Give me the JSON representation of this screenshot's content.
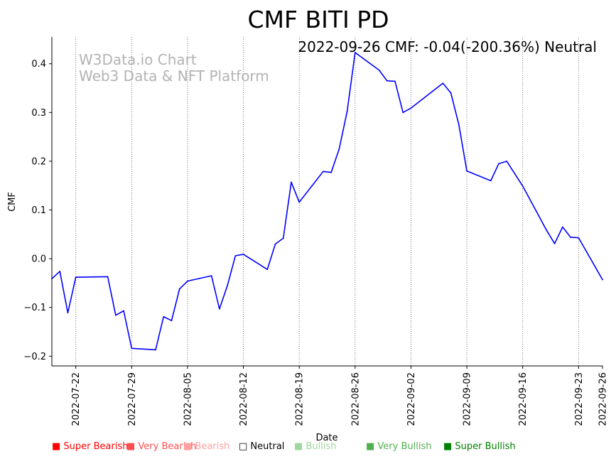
{
  "chart_data": {
    "type": "line",
    "title": "CMF BITI PD",
    "info_text": "2022-09-26 CMF: -0.04(-200.36%) Neutral",
    "watermark": [
      "W3Data.io Chart",
      "Web3 Data & NFT Platform"
    ],
    "xlabel": "Date",
    "ylabel": "CMF",
    "ylim": [
      -0.22,
      0.455
    ],
    "y_ticks": [
      -0.2,
      -0.1,
      0.0,
      0.1,
      0.2,
      0.3,
      0.4
    ],
    "y_tick_labels": [
      "−0.2",
      "−0.1",
      "0.0",
      "0.1",
      "0.2",
      "0.3",
      "0.4"
    ],
    "x_start": "2022-07-19",
    "x_end": "2022-09-26",
    "x_ticks": [
      "2022-07-22",
      "2022-07-29",
      "2022-08-05",
      "2022-08-12",
      "2022-08-19",
      "2022-08-26",
      "2022-09-02",
      "2022-09-09",
      "2022-09-16",
      "2022-09-23",
      "2022-09-26"
    ],
    "vertical_gridlines": [
      "2022-07-22",
      "2022-07-29",
      "2022-08-05",
      "2022-08-12",
      "2022-08-19",
      "2022-08-26",
      "2022-09-02",
      "2022-09-09",
      "2022-09-16",
      "2022-09-23"
    ],
    "series": [
      {
        "name": "CMF",
        "color": "#0000ff",
        "points": [
          [
            "2022-07-19",
            -0.041
          ],
          [
            "2022-07-20",
            -0.026
          ],
          [
            "2022-07-21",
            -0.111
          ],
          [
            "2022-07-22",
            -0.038
          ],
          [
            "2022-07-26",
            -0.037
          ],
          [
            "2022-07-27",
            -0.116
          ],
          [
            "2022-07-28",
            -0.107
          ],
          [
            "2022-07-29",
            -0.184
          ],
          [
            "2022-08-01",
            -0.187
          ],
          [
            "2022-08-02",
            -0.119
          ],
          [
            "2022-08-03",
            -0.127
          ],
          [
            "2022-08-04",
            -0.062
          ],
          [
            "2022-08-05",
            -0.046
          ],
          [
            "2022-08-08",
            -0.035
          ],
          [
            "2022-08-09",
            -0.103
          ],
          [
            "2022-08-10",
            -0.055
          ],
          [
            "2022-08-11",
            0.006
          ],
          [
            "2022-08-12",
            0.009
          ],
          [
            "2022-08-15",
            -0.022
          ],
          [
            "2022-08-16",
            0.03
          ],
          [
            "2022-08-17",
            0.042
          ],
          [
            "2022-08-18",
            0.157
          ],
          [
            "2022-08-19",
            0.116
          ],
          [
            "2022-08-22",
            0.179
          ],
          [
            "2022-08-23",
            0.177
          ],
          [
            "2022-08-24",
            0.225
          ],
          [
            "2022-08-25",
            0.302
          ],
          [
            "2022-08-26",
            0.423
          ],
          [
            "2022-08-29",
            0.387
          ],
          [
            "2022-08-30",
            0.365
          ],
          [
            "2022-08-31",
            0.364
          ],
          [
            "2022-09-01",
            0.3
          ],
          [
            "2022-09-02",
            0.309
          ],
          [
            "2022-09-06",
            0.36
          ],
          [
            "2022-09-07",
            0.34
          ],
          [
            "2022-09-08",
            0.275
          ],
          [
            "2022-09-09",
            0.18
          ],
          [
            "2022-09-12",
            0.16
          ],
          [
            "2022-09-13",
            0.195
          ],
          [
            "2022-09-14",
            0.2
          ],
          [
            "2022-09-16",
            0.149
          ],
          [
            "2022-09-19",
            0.058
          ],
          [
            "2022-09-20",
            0.031
          ],
          [
            "2022-09-21",
            0.065
          ],
          [
            "2022-09-22",
            0.044
          ],
          [
            "2022-09-23",
            0.043
          ],
          [
            "2022-09-26",
            -0.043
          ]
        ]
      }
    ],
    "legend": [
      {
        "label": "Super Bearish",
        "marker": "■",
        "color": "#ff0000"
      },
      {
        "label": "Very Bearish",
        "marker": "■",
        "color": "#ff5050"
      },
      {
        "label": "Bearish",
        "marker": "■",
        "color": "#ffa0a0"
      },
      {
        "label": "Neutral",
        "marker": "□",
        "color": "#000000"
      },
      {
        "label": "Bullish",
        "marker": "■",
        "color": "#a0d6a0"
      },
      {
        "label": "Very Bullish",
        "marker": "■",
        "color": "#50b050"
      },
      {
        "label": "Super Bullish",
        "marker": "■",
        "color": "#008000"
      }
    ],
    "legend_position": "bottom"
  }
}
